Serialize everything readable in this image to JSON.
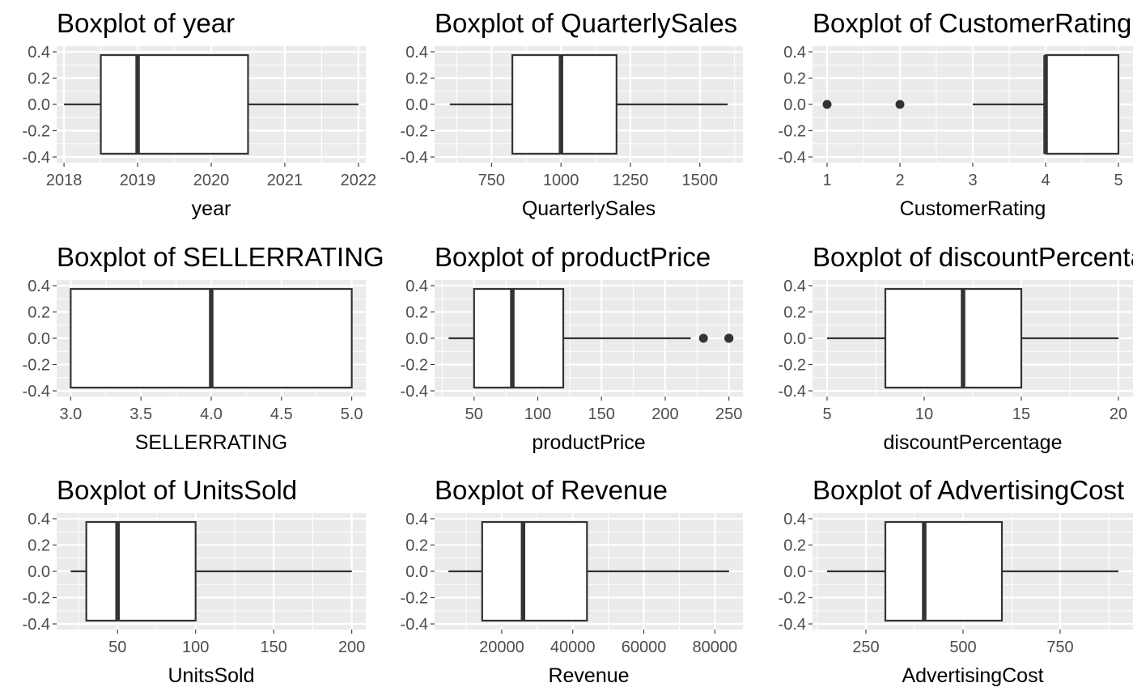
{
  "figure": {
    "type": "faceted-boxplots",
    "background": "#ffffff",
    "panel_background": "#ebebeb",
    "grid_color": "#ffffff",
    "box_fill": "#ffffff",
    "box_line": "#333333"
  },
  "chart_data": [
    {
      "type": "boxplot",
      "title": "Boxplot of year",
      "xlabel": "year",
      "xlim": [
        2017.9,
        2022.1
      ],
      "ylim": [
        -0.4,
        0.4
      ],
      "xticks": [
        2018,
        2019,
        2020,
        2021,
        2022
      ],
      "xtick_labels": [
        "2018",
        "2019",
        "2020",
        "2021",
        "2022"
      ],
      "yticks": [
        -0.4,
        -0.2,
        0.0,
        0.2,
        0.4
      ],
      "ytick_labels": [
        "-0.4",
        "-0.2",
        "0.0",
        "0.2",
        "0.4"
      ],
      "box": {
        "min": 2018,
        "q1": 2018.5,
        "median": 2019,
        "q3": 2020.5,
        "max": 2022
      },
      "outliers": []
    },
    {
      "type": "boxplot",
      "title": "Boxplot of QuarterlySales",
      "xlabel": "QuarterlySales",
      "xlim": [
        545,
        1655
      ],
      "ylim": [
        -0.4,
        0.4
      ],
      "xticks": [
        750,
        1000,
        1250,
        1500
      ],
      "xtick_labels": [
        "750",
        "1000",
        "1250",
        "1500"
      ],
      "yticks": [
        -0.4,
        -0.2,
        0.0,
        0.2,
        0.4
      ],
      "ytick_labels": [
        "-0.4",
        "-0.2",
        "0.0",
        "0.2",
        "0.4"
      ],
      "box": {
        "min": 600,
        "q1": 825,
        "median": 1000,
        "q3": 1200,
        "max": 1600
      },
      "outliers": []
    },
    {
      "type": "boxplot",
      "title": "Boxplot of CustomerRating",
      "xlabel": "CustomerRating",
      "xlim": [
        0.8,
        5.2
      ],
      "ylim": [
        -0.4,
        0.4
      ],
      "xticks": [
        1,
        2,
        3,
        4,
        5
      ],
      "xtick_labels": [
        "1",
        "2",
        "3",
        "4",
        "5"
      ],
      "yticks": [
        -0.4,
        -0.2,
        0.0,
        0.2,
        0.4
      ],
      "ytick_labels": [
        "-0.4",
        "-0.2",
        "0.0",
        "0.2",
        "0.4"
      ],
      "box": {
        "min": 3,
        "q1": 4,
        "median": 4,
        "q3": 5,
        "max": 5
      },
      "outliers": [
        1,
        2
      ]
    },
    {
      "type": "boxplot",
      "title": "Boxplot of SELLERRATING",
      "xlabel": "SELLERRATING",
      "xlim": [
        2.9,
        5.1
      ],
      "ylim": [
        -0.4,
        0.4
      ],
      "xticks": [
        3.0,
        3.5,
        4.0,
        4.5,
        5.0
      ],
      "xtick_labels": [
        "3.0",
        "3.5",
        "4.0",
        "4.5",
        "5.0"
      ],
      "yticks": [
        -0.4,
        -0.2,
        0.0,
        0.2,
        0.4
      ],
      "ytick_labels": [
        "-0.4",
        "-0.2",
        "0.0",
        "0.2",
        "0.4"
      ],
      "box": {
        "min": 3,
        "q1": 3,
        "median": 4,
        "q3": 5,
        "max": 5
      },
      "outliers": []
    },
    {
      "type": "boxplot",
      "title": "Boxplot of productPrice",
      "xlabel": "productPrice",
      "xlim": [
        19,
        261
      ],
      "ylim": [
        -0.4,
        0.4
      ],
      "xticks": [
        50,
        100,
        150,
        200,
        250
      ],
      "xtick_labels": [
        "50",
        "100",
        "150",
        "200",
        "250"
      ],
      "yticks": [
        -0.4,
        -0.2,
        0.0,
        0.2,
        0.4
      ],
      "ytick_labels": [
        "-0.4",
        "-0.2",
        "0.0",
        "0.2",
        "0.4"
      ],
      "box": {
        "min": 30,
        "q1": 50,
        "median": 80,
        "q3": 120,
        "max": 220
      },
      "outliers": [
        230,
        250,
        250,
        250
      ]
    },
    {
      "type": "boxplot",
      "title": "Boxplot of discountPercentage",
      "xlabel": "discountPercentage",
      "xlim": [
        4.25,
        20.75
      ],
      "ylim": [
        -0.4,
        0.4
      ],
      "xticks": [
        5,
        10,
        15,
        20
      ],
      "xtick_labels": [
        "5",
        "10",
        "15",
        "20"
      ],
      "yticks": [
        -0.4,
        -0.2,
        0.0,
        0.2,
        0.4
      ],
      "ytick_labels": [
        "-0.4",
        "-0.2",
        "0.0",
        "0.2",
        "0.4"
      ],
      "box": {
        "min": 5,
        "q1": 8,
        "median": 12,
        "q3": 15,
        "max": 20
      },
      "outliers": []
    },
    {
      "type": "boxplot",
      "title": "Boxplot of UnitsSold",
      "xlabel": "UnitsSold",
      "xlim": [
        11,
        209
      ],
      "ylim": [
        -0.4,
        0.4
      ],
      "xticks": [
        50,
        100,
        150,
        200
      ],
      "xtick_labels": [
        "50",
        "100",
        "150",
        "200"
      ],
      "yticks": [
        -0.4,
        -0.2,
        0.0,
        0.2,
        0.4
      ],
      "ytick_labels": [
        "-0.4",
        "-0.2",
        "0.0",
        "0.2",
        "0.4"
      ],
      "box": {
        "min": 20,
        "q1": 30,
        "median": 50,
        "q3": 100,
        "max": 200
      },
      "outliers": []
    },
    {
      "type": "boxplot",
      "title": "Boxplot of Revenue",
      "xlabel": "Revenue",
      "xlim": [
        1100,
        87900
      ],
      "ylim": [
        -0.4,
        0.4
      ],
      "xticks": [
        20000,
        40000,
        60000,
        80000
      ],
      "xtick_labels": [
        "20000",
        "40000",
        "60000",
        "80000"
      ],
      "yticks": [
        -0.4,
        -0.2,
        0.0,
        0.2,
        0.4
      ],
      "ytick_labels": [
        "-0.4",
        "-0.2",
        "0.0",
        "0.2",
        "0.4"
      ],
      "box": {
        "min": 5000,
        "q1": 14500,
        "median": 26000,
        "q3": 44000,
        "max": 84000
      },
      "outliers": []
    },
    {
      "type": "boxplot",
      "title": "Boxplot of AdvertisingCost",
      "xlabel": "AdvertisingCost",
      "xlim": [
        112.5,
        937.5
      ],
      "ylim": [
        -0.4,
        0.4
      ],
      "xticks": [
        250,
        500,
        750
      ],
      "xtick_labels": [
        "250",
        "500",
        "750"
      ],
      "yticks": [
        -0.4,
        -0.2,
        0.0,
        0.2,
        0.4
      ],
      "ytick_labels": [
        "-0.4",
        "-0.2",
        "0.0",
        "0.2",
        "0.4"
      ],
      "box": {
        "min": 150,
        "q1": 300,
        "median": 400,
        "q3": 600,
        "max": 900
      },
      "outliers": []
    }
  ]
}
